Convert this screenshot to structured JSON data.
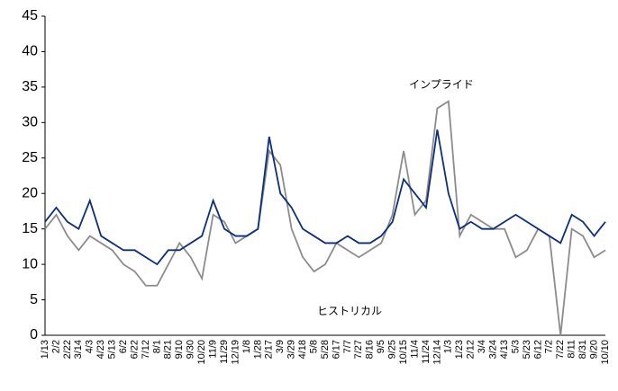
{
  "chart_data": {
    "type": "line",
    "categories": [
      "1/13",
      "2/2",
      "2/22",
      "3/14",
      "4/3",
      "4/23",
      "5/13",
      "6/2",
      "6/22",
      "7/12",
      "8/1",
      "8/21",
      "9/10",
      "9/30",
      "10/20",
      "11/9",
      "11/29",
      "12/19",
      "1/8",
      "1/28",
      "2/17",
      "3/9",
      "3/29",
      "4/18",
      "5/8",
      "5/28",
      "6/17",
      "7/7",
      "7/27",
      "8/16",
      "9/5",
      "9/25",
      "10/15",
      "11/4",
      "11/24",
      "12/14",
      "1/3",
      "1/23",
      "2/12",
      "3/4",
      "3/24",
      "4/13",
      "5/3",
      "5/23",
      "6/12",
      "7/2",
      "7/22",
      "8/11",
      "8/31",
      "9/20",
      "10/10"
    ],
    "series": [
      {
        "name": "ヒストリカル",
        "color": "#8c8c8c",
        "values": [
          15,
          17,
          14,
          12,
          14,
          13,
          12,
          10,
          9,
          7,
          7,
          10,
          13,
          11,
          8,
          17,
          16,
          13,
          14,
          15,
          26,
          24,
          15,
          11,
          9,
          10,
          13,
          12,
          11,
          12,
          13,
          17,
          26,
          17,
          19,
          32,
          33,
          14,
          17,
          16,
          15,
          15,
          11,
          12,
          15,
          14,
          0,
          15,
          14,
          11,
          12
        ]
      },
      {
        "name": "インプライド",
        "color": "#0b2e7d",
        "values": [
          16,
          18,
          16,
          15,
          19,
          14,
          13,
          12,
          12,
          11,
          10,
          12,
          12,
          13,
          14,
          19,
          15,
          14,
          14,
          15,
          28,
          20,
          18,
          15,
          14,
          13,
          13,
          14,
          13,
          13,
          14,
          16,
          22,
          20,
          18,
          29,
          20,
          15,
          16,
          15,
          15,
          16,
          17,
          16,
          15,
          14,
          13,
          17,
          16,
          14,
          16
        ]
      }
    ],
    "annotations": [
      {
        "text": "インプライド"
      },
      {
        "text": "ヒストリカル"
      }
    ],
    "ylim": [
      0,
      45
    ],
    "yticks": [
      0,
      5,
      10,
      15,
      20,
      25,
      30,
      35,
      40,
      45
    ],
    "grid": false
  }
}
